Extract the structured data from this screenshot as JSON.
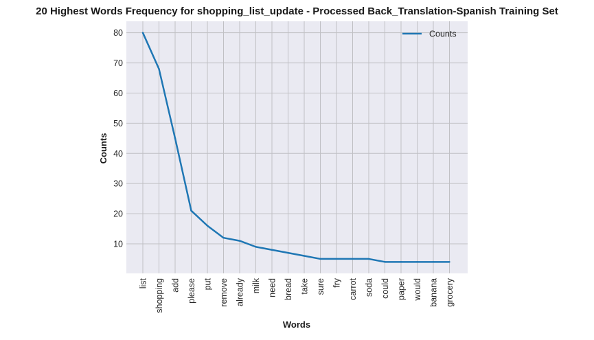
{
  "chart_data": {
    "type": "line",
    "title": "20 Highest Words Frequency for shopping_list_update - Processed Back_Translation-Spanish Training Set",
    "xlabel": "Words",
    "ylabel": "Counts",
    "categories": [
      "list",
      "shopping",
      "add",
      "please",
      "put",
      "remove",
      "already",
      "milk",
      "need",
      "bread",
      "take",
      "sure",
      "fry",
      "carrot",
      "soda",
      "could",
      "paper",
      "would",
      "banana",
      "grocery"
    ],
    "series": [
      {
        "name": "Counts",
        "values": [
          80,
          68,
          45,
          21,
          16,
          12,
          11,
          9,
          8,
          7,
          6,
          5,
          5,
          5,
          5,
          4,
          4,
          4,
          4,
          4
        ]
      }
    ],
    "yticks": [
      10,
      20,
      30,
      40,
      50,
      60,
      70,
      80
    ],
    "ylim": [
      0.2,
      83.8
    ],
    "grid": true,
    "legend_position": "top-right",
    "colors": {
      "plot_background": "#eaeaf2",
      "grid": "#c0c0c4",
      "line": "#1f77b4",
      "text": "#262626"
    }
  }
}
